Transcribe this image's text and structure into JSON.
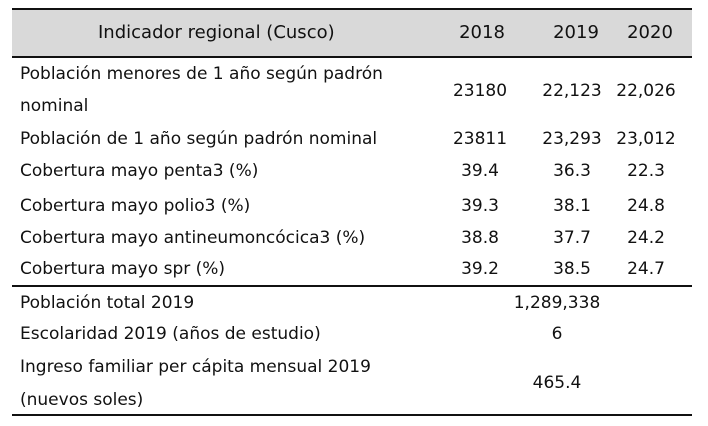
{
  "header": {
    "indicator": "Indicador regional (Cusco)",
    "years": [
      "2018",
      "2019",
      "2020"
    ]
  },
  "rows": [
    {
      "label_line1": "Población menores de 1 año según padrón",
      "label_line2": "nominal",
      "v2018": "23180",
      "v2019": "22,123",
      "v2020": "22,026"
    },
    {
      "label": "Población de 1 año según padrón nominal",
      "v2018": "23811",
      "v2019": "23,293",
      "v2020": "23,012"
    },
    {
      "label": "Cobertura mayo penta3 (%)",
      "v2018": "39.4",
      "v2019": "36.3",
      "v2020": "22.3"
    },
    {
      "label": "Cobertura mayo polio3 (%)",
      "v2018": "39.3",
      "v2019": "38.1",
      "v2020": "24.8"
    },
    {
      "label": "Cobertura mayo antineumoncócica3 (%)",
      "v2018": "38.8",
      "v2019": "37.7",
      "v2020": "24.2"
    },
    {
      "label": "Cobertura mayo spr (%)",
      "v2018": "39.2",
      "v2019": "38.5",
      "v2020": "24.7"
    }
  ],
  "summary": [
    {
      "label": "Población total 2019",
      "value": "1,289,338"
    },
    {
      "label": "Escolaridad 2019 (años de estudio)",
      "value": "6"
    },
    {
      "label_line1": "Ingreso familiar per cápita mensual 2019",
      "label_line2": "(nuevos soles)",
      "value": "465.4"
    }
  ]
}
